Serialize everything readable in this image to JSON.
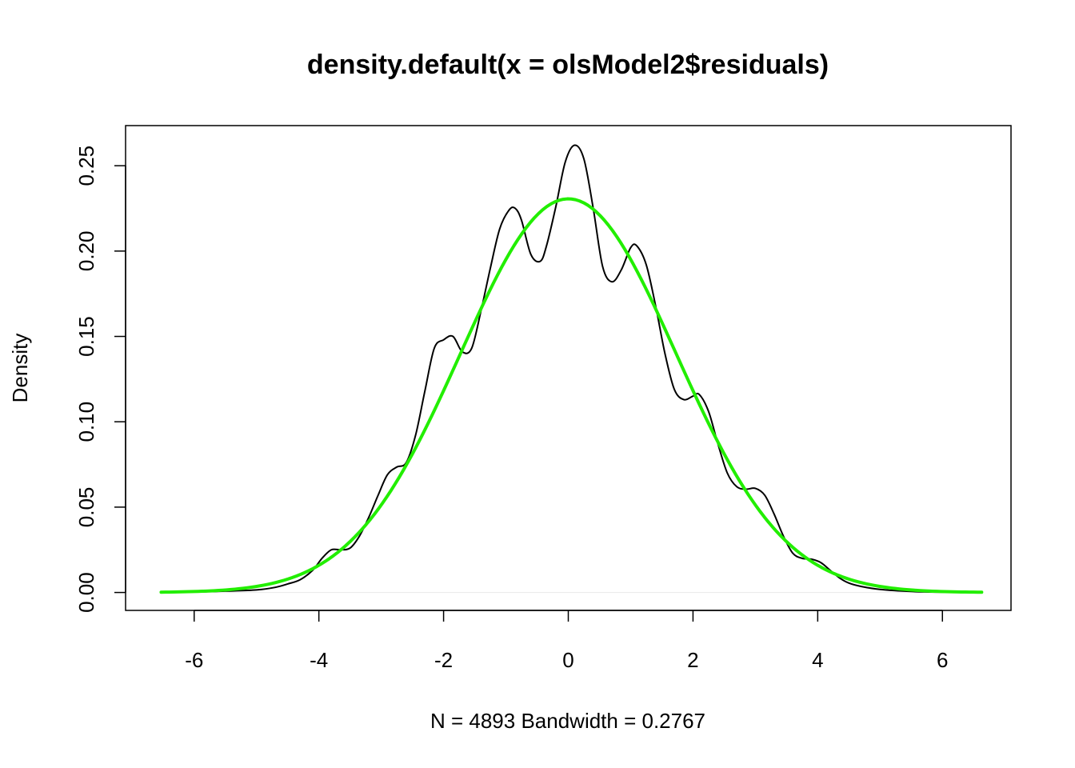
{
  "chart_data": {
    "type": "line",
    "title": "density.default(x = olsModel2$residuals)",
    "xlabel": "N = 4893   Bandwidth = 0.2767",
    "ylabel": "Density",
    "xlim": [
      -7.1,
      7.1
    ],
    "ylim": [
      -0.0105,
      0.2735
    ],
    "xticks": [
      -6,
      -4,
      -2,
      0,
      2,
      4,
      6
    ],
    "xtick_labels": [
      "-6",
      "-4",
      "-2",
      "0",
      "2",
      "4",
      "6"
    ],
    "yticks": [
      0,
      0.05,
      0.1,
      0.15,
      0.2,
      0.25
    ],
    "ytick_labels": [
      "0.00",
      "0.05",
      "0.10",
      "0.15",
      "0.20",
      "0.25"
    ],
    "grid": false,
    "series": [
      {
        "color": "#000000",
        "x": [
          -6.53,
          -6.0,
          -5.5,
          -5.0,
          -4.7,
          -4.5,
          -4.3,
          -4.1,
          -3.95,
          -3.8,
          -3.65,
          -3.5,
          -3.35,
          -3.2,
          -3.05,
          -2.9,
          -2.75,
          -2.6,
          -2.45,
          -2.3,
          -2.15,
          -2.0,
          -1.85,
          -1.7,
          -1.55,
          -1.4,
          -1.25,
          -1.1,
          -0.95,
          -0.85,
          -0.75,
          -0.6,
          -0.45,
          -0.35,
          -0.2,
          -0.05,
          0.1,
          0.25,
          0.4,
          0.55,
          0.7,
          0.85,
          1.0,
          1.1,
          1.25,
          1.4,
          1.55,
          1.7,
          1.85,
          2.0,
          2.1,
          2.25,
          2.4,
          2.55,
          2.7,
          2.85,
          3.0,
          3.15,
          3.3,
          3.45,
          3.6,
          3.75,
          3.9,
          4.05,
          4.2,
          4.35,
          4.5,
          4.7,
          5.0,
          5.5,
          6.0,
          6.63
        ],
        "y": [
          0.0001,
          0.0003,
          0.0008,
          0.0015,
          0.003,
          0.005,
          0.0075,
          0.013,
          0.02,
          0.025,
          0.025,
          0.026,
          0.033,
          0.044,
          0.057,
          0.069,
          0.0735,
          0.076,
          0.092,
          0.118,
          0.143,
          0.148,
          0.15,
          0.141,
          0.143,
          0.165,
          0.19,
          0.213,
          0.224,
          0.225,
          0.218,
          0.198,
          0.194,
          0.203,
          0.226,
          0.252,
          0.262,
          0.254,
          0.225,
          0.191,
          0.182,
          0.189,
          0.202,
          0.203,
          0.192,
          0.168,
          0.14,
          0.119,
          0.113,
          0.115,
          0.116,
          0.106,
          0.087,
          0.07,
          0.062,
          0.0605,
          0.061,
          0.057,
          0.046,
          0.033,
          0.023,
          0.02,
          0.0195,
          0.0175,
          0.013,
          0.0085,
          0.0055,
          0.0035,
          0.0018,
          0.0006,
          0.0002,
          0.0001
        ]
      },
      {
        "color": "#22ee00",
        "normal_mean": 0,
        "normal_sd": 1.73,
        "x_from": -6.53,
        "x_to": 6.63
      }
    ]
  }
}
